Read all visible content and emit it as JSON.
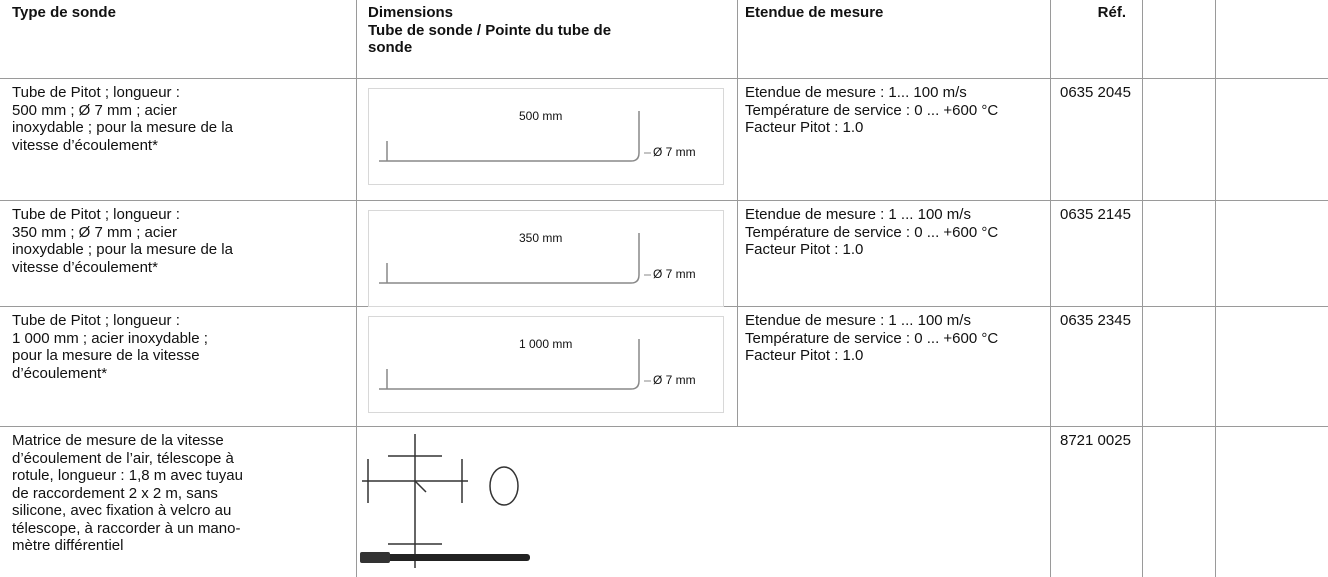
{
  "header": {
    "type": "Type de sonde",
    "dimensions": "Dimensions",
    "dimensions_sub": [
      "Tube de sonde / Pointe du tube de",
      "sonde"
    ],
    "range": "Etendue de mesure",
    "ref": "Réf."
  },
  "rows": [
    {
      "description": [
        "Tube de Pitot ; longueur :",
        "500 mm ; Ø 7 mm ; acier",
        "inoxydable ; pour la mesure de la",
        "vitesse d’écoulement*"
      ],
      "length_label": "500 mm",
      "diameter_label": "Ø 7 mm",
      "range": [
        "Etendue de mesure : 1... 100 m/s",
        "Température de service : 0 ... +600 °C",
        "Facteur Pitot : 1.0"
      ],
      "ref": "0635 2045"
    },
    {
      "description": [
        "Tube de Pitot ; longueur :",
        "350 mm ; Ø 7 mm ; acier",
        "inoxydable ; pour la mesure de la",
        "vitesse d’écoulement*"
      ],
      "length_label": "350 mm",
      "diameter_label": "Ø 7 mm",
      "range": [
        "Etendue de mesure : 1 ... 100 m/s",
        "Température de service : 0 ... +600 °C",
        "Facteur Pitot : 1.0"
      ],
      "ref": "0635 2145"
    },
    {
      "description": [
        "Tube de Pitot ; longueur :",
        "1 000 mm ; acier inoxydable ;",
        "pour la mesure de la vitesse",
        "d’écoulement*"
      ],
      "length_label": "1 000 mm",
      "diameter_label": "Ø 7 mm",
      "range": [
        "Etendue de mesure : 1 ... 100 m/s",
        "Température de service : 0 ... +600 °C",
        "Facteur Pitot : 1.0"
      ],
      "ref": "0635 2345"
    },
    {
      "description": [
        "Matrice de mesure de la vitesse",
        "d’écoulement de l’air, télescope à",
        "rotule, longueur : 1,8 m avec tuyau",
        "de raccordement 2 x 2 m, sans",
        "silicone, avec fixation à velcro au",
        "télescope, à raccorder à un mano-",
        "mètre différentiel"
      ],
      "ref": "8721 0025"
    }
  ]
}
